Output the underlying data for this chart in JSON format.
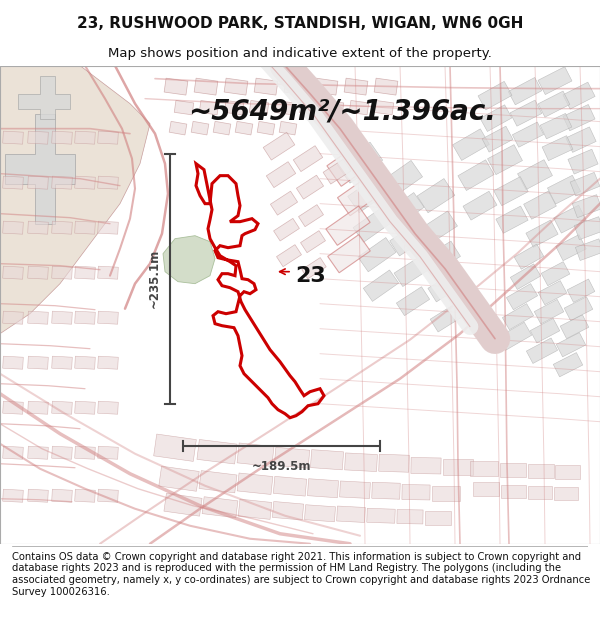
{
  "title": "23, RUSHWOOD PARK, STANDISH, WIGAN, WN6 0GH",
  "subtitle": "Map shows position and indicative extent of the property.",
  "area_text": "~5649m²/~1.396ac.",
  "label_23": "23",
  "dim_vertical": "~235.1m",
  "dim_horizontal": "~189.5m",
  "footer": "Contains OS data © Crown copyright and database right 2021. This information is subject to Crown copyright and database rights 2023 and is reproduced with the permission of HM Land Registry. The polygons (including the associated geometry, namely x, y co-ordinates) are subject to Crown copyright and database rights 2023 Ordnance Survey 100026316.",
  "bg_color": "#ffffff",
  "map_bg": "#ffffff",
  "title_fontsize": 11,
  "subtitle_fontsize": 9.5,
  "area_fontsize": 20,
  "footer_fontsize": 7.2,
  "street_color": "#e8b0b0",
  "street_color2": "#d08080",
  "block_fill": "#e8d8d8",
  "block_edge": "#c09090",
  "gray_block_fill": "#d8d8d8",
  "gray_block_edge": "#aaaaaa",
  "tan_fill": "#e8ddd0",
  "green_color": "#ccd8c0",
  "property_color": "#cc0000",
  "dim_line_color": "#444444",
  "label_color": "#111111",
  "title_color": "#111111"
}
